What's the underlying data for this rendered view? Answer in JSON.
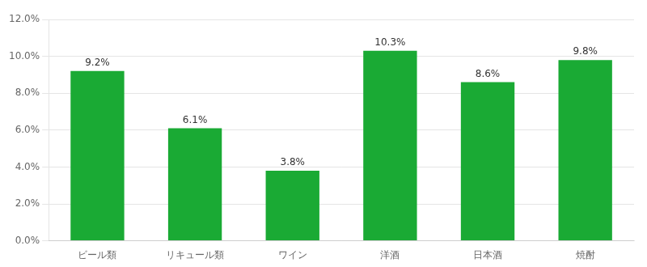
{
  "chart_data": {
    "type": "bar",
    "categories": [
      "ビール類",
      "リキュール類",
      "ワイン",
      "洋酒",
      "日本酒",
      "焼酎"
    ],
    "values": [
      9.2,
      6.1,
      3.8,
      10.3,
      8.6,
      9.8
    ],
    "value_labels": [
      "9.2%",
      "6.1%",
      "3.8%",
      "10.3%",
      "8.6%",
      "9.8%"
    ],
    "color": "#1aaa34",
    "ylim": [
      0,
      12.0
    ],
    "yticks": [
      {
        "value": 0,
        "label": "0.0%"
      },
      {
        "value": 2,
        "label": "2.0%"
      },
      {
        "value": 4,
        "label": "4.0%"
      },
      {
        "value": 6,
        "label": "6.0%"
      },
      {
        "value": 8,
        "label": "8.0%"
      },
      {
        "value": 10,
        "label": "10.0%"
      },
      {
        "value": 12,
        "label": "12.0%"
      }
    ],
    "grid": true,
    "data_labels": true
  }
}
